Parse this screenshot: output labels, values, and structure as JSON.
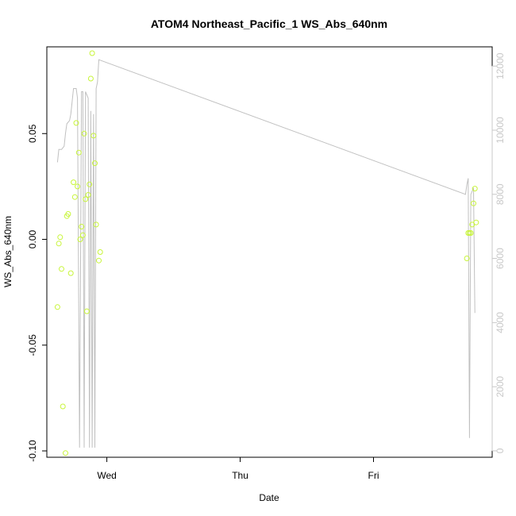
{
  "chart_data": {
    "type": "scatter",
    "title": "ATOM4 Northeast_Pacific_1 WS_Abs_640nm",
    "xlabel": "Date",
    "ylabel": "WS_Abs_640nm",
    "x_tick_labels": [
      "Wed",
      "Thu",
      "Fri"
    ],
    "y_ticks": [
      -0.1,
      -0.05,
      0.0,
      0.05
    ],
    "y_tick_labels": [
      "-0.10",
      "-0.05",
      "0.00",
      "0.05"
    ],
    "y_lim": [
      -0.103,
      0.091
    ],
    "y2_ticks": [
      0,
      2000,
      4000,
      6000,
      8000,
      10000,
      12000
    ],
    "y2_tick_labels": [
      "0",
      "2000",
      "4000",
      "6000",
      "8000",
      "10000",
      "12000"
    ],
    "y2_lim": [
      -200,
      12600
    ],
    "x_lim_days": [
      -0.45,
      2.89
    ],
    "grid": false,
    "colors": {
      "points": "#c8f53a",
      "line": "#c0c0c0",
      "axis": "#000000",
      "right_axis": "#c8c8c8"
    },
    "series": [
      {
        "kind": "points",
        "points": [
          [
            -0.37,
            -0.032
          ],
          [
            -0.36,
            -0.002
          ],
          [
            -0.35,
            0.001
          ],
          [
            -0.34,
            -0.014
          ],
          [
            -0.33,
            -0.079
          ],
          [
            -0.31,
            -0.101
          ],
          [
            -0.3,
            0.011
          ],
          [
            -0.29,
            0.012
          ],
          [
            -0.27,
            -0.016
          ],
          [
            -0.25,
            0.027
          ],
          [
            -0.24,
            0.02
          ],
          [
            -0.23,
            0.055
          ],
          [
            -0.22,
            0.025
          ],
          [
            -0.21,
            0.041
          ],
          [
            -0.2,
            0.0
          ],
          [
            -0.19,
            0.006
          ],
          [
            -0.18,
            0.002
          ],
          [
            -0.17,
            0.05
          ],
          [
            -0.16,
            0.019
          ],
          [
            -0.15,
            -0.034
          ],
          [
            -0.14,
            0.021
          ],
          [
            -0.13,
            0.026
          ],
          [
            -0.12,
            0.076
          ],
          [
            -0.11,
            0.088
          ],
          [
            -0.1,
            0.049
          ],
          [
            -0.09,
            0.036
          ],
          [
            -0.08,
            0.007
          ],
          [
            -0.06,
            -0.01
          ],
          [
            -0.05,
            -0.006
          ],
          [
            2.7,
            -0.009
          ],
          [
            2.71,
            0.003
          ],
          [
            2.72,
            0.003
          ],
          [
            2.73,
            0.003
          ],
          [
            2.74,
            0.007
          ],
          [
            2.75,
            0.017
          ],
          [
            2.76,
            0.024
          ],
          [
            2.77,
            0.008
          ]
        ]
      },
      {
        "kind": "line",
        "axis": "right",
        "points": [
          [
            -0.37,
            9000
          ],
          [
            -0.36,
            9400
          ],
          [
            -0.34,
            9400
          ],
          [
            -0.32,
            9500
          ],
          [
            -0.31,
            9900
          ],
          [
            -0.3,
            10200
          ],
          [
            -0.28,
            10300
          ],
          [
            -0.27,
            10500
          ],
          [
            -0.26,
            10900
          ],
          [
            -0.25,
            11300
          ],
          [
            -0.24,
            11300
          ],
          [
            -0.23,
            11300
          ],
          [
            -0.22,
            11000
          ],
          [
            -0.205,
            100
          ],
          [
            -0.19,
            11200
          ],
          [
            -0.18,
            11200
          ],
          [
            -0.17,
            100
          ],
          [
            -0.16,
            11200
          ],
          [
            -0.15,
            11100
          ],
          [
            -0.14,
            11000
          ],
          [
            -0.13,
            100
          ],
          [
            -0.12,
            10600
          ],
          [
            -0.11,
            100
          ],
          [
            -0.1,
            10500
          ],
          [
            -0.09,
            100
          ],
          [
            -0.08,
            11300
          ],
          [
            -0.07,
            11500
          ],
          [
            -0.06,
            12200
          ],
          [
            2.69,
            8000
          ],
          [
            2.7,
            8300
          ],
          [
            2.71,
            8500
          ],
          [
            2.72,
            400
          ],
          [
            2.73,
            8000
          ],
          [
            2.74,
            8100
          ],
          [
            2.75,
            8200
          ],
          [
            2.76,
            4300
          ]
        ]
      }
    ]
  }
}
